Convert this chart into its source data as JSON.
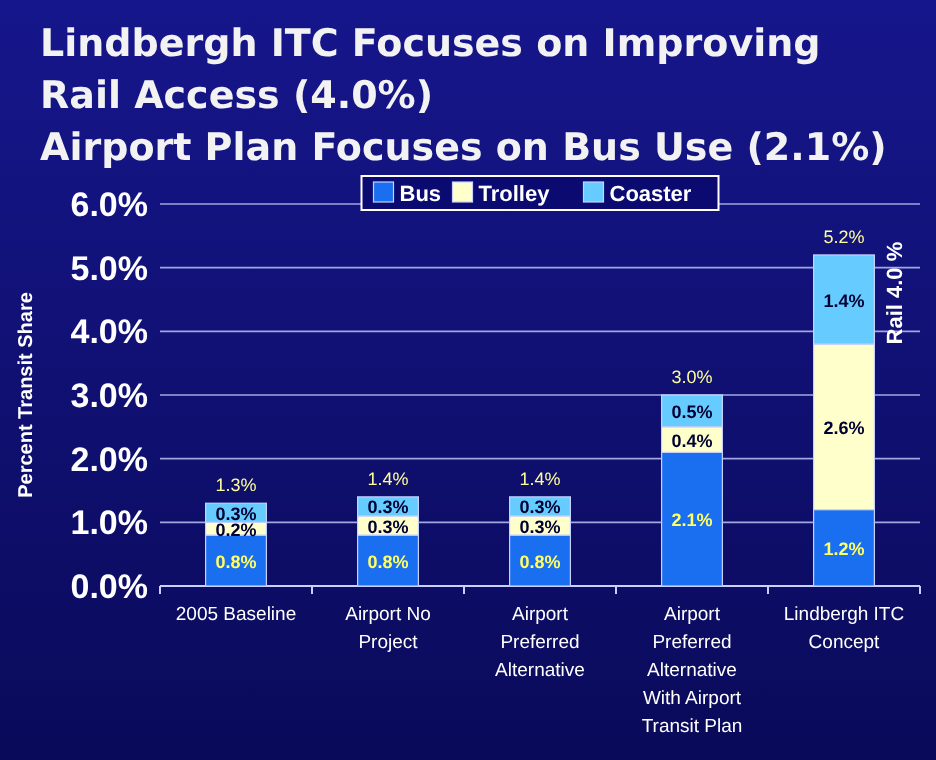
{
  "chart_data": {
    "type": "bar",
    "stacked": true,
    "title": "Lindbergh ITC Focuses on Improving\nRail Access (4.0%)",
    "subtitle": "Airport Plan Focuses on Bus Use (2.1%)",
    "ylabel": "Percent Transit Share",
    "categories": [
      "2005 Baseline",
      "Airport No Project",
      "Airport Preferred Alternative",
      "Airport Preferred Alternative With Airport Transit Plan",
      "Lindbergh ITC Concept"
    ],
    "series": [
      {
        "name": "Bus",
        "color": "#1a6ef0",
        "values": [
          0.8,
          0.8,
          0.8,
          2.1,
          1.2
        ],
        "value_labels": [
          "0.8%",
          "0.8%",
          "0.8%",
          "2.1%",
          "1.2%"
        ]
      },
      {
        "name": "Trolley",
        "color": "#ffffcc",
        "values": [
          0.2,
          0.3,
          0.3,
          0.4,
          2.6
        ],
        "value_labels": [
          "0.2%",
          "0.3%",
          "0.3%",
          "0.4%",
          "2.6%"
        ]
      },
      {
        "name": "Coaster",
        "color": "#66ccff",
        "values": [
          0.3,
          0.3,
          0.3,
          0.5,
          1.4
        ],
        "value_labels": [
          "0.3%",
          "0.3%",
          "0.3%",
          "0.5%",
          "1.4%"
        ]
      }
    ],
    "totals": [
      "1.3%",
      "1.4%",
      "1.4%",
      "3.0%",
      "5.2%"
    ],
    "annotations": [
      "Rail 4.0 %"
    ],
    "ylim": [
      0,
      6
    ],
    "yticks": [
      {
        "value": 0,
        "label": "0.0%"
      },
      {
        "value": 1,
        "label": "1.0%"
      },
      {
        "value": 2,
        "label": "2.0%"
      },
      {
        "value": 3,
        "label": "3.0%"
      },
      {
        "value": 4,
        "label": "4.0%"
      },
      {
        "value": 5,
        "label": "5.0%"
      },
      {
        "value": 6,
        "label": "6.0%"
      }
    ],
    "grid": "y",
    "legend": "top"
  }
}
